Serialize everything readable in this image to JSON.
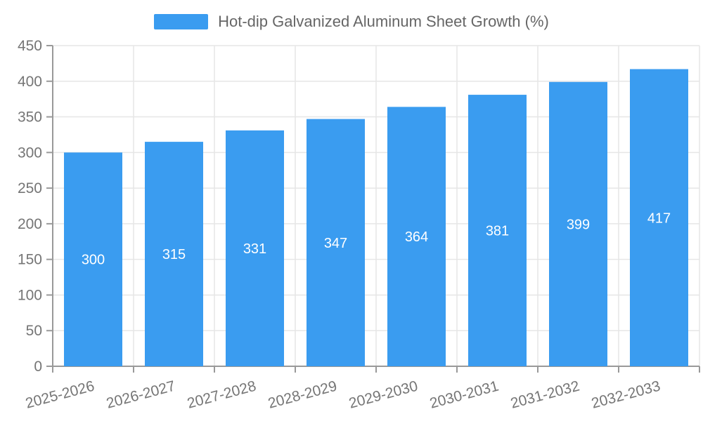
{
  "chart_data": {
    "type": "bar",
    "title": "",
    "xlabel": "",
    "ylabel": "",
    "legend": {
      "label": "Hot-dip Galvanized Aluminum Sheet Growth (%)",
      "position": "top-center"
    },
    "categories": [
      "2025-2026",
      "2026-2027",
      "2027-2028",
      "2028-2029",
      "2029-2030",
      "2030-2031",
      "2031-2032",
      "2032-2033"
    ],
    "series": [
      {
        "name": "Hot-dip Galvanized Aluminum Sheet Growth (%)",
        "values": [
          300,
          315,
          331,
          347,
          364,
          381,
          399,
          417
        ]
      }
    ],
    "ylim": [
      0,
      450
    ],
    "ytick_step": 50,
    "grid": "on",
    "x_label_rotation_deg": -15,
    "colors": {
      "bar": "#3a9cf0",
      "bar_value_label": "#ffffff",
      "axis_label": "#757575",
      "legend_text": "#666666",
      "axis_line": "#999999",
      "grid_line": "#e6e6e6"
    }
  }
}
